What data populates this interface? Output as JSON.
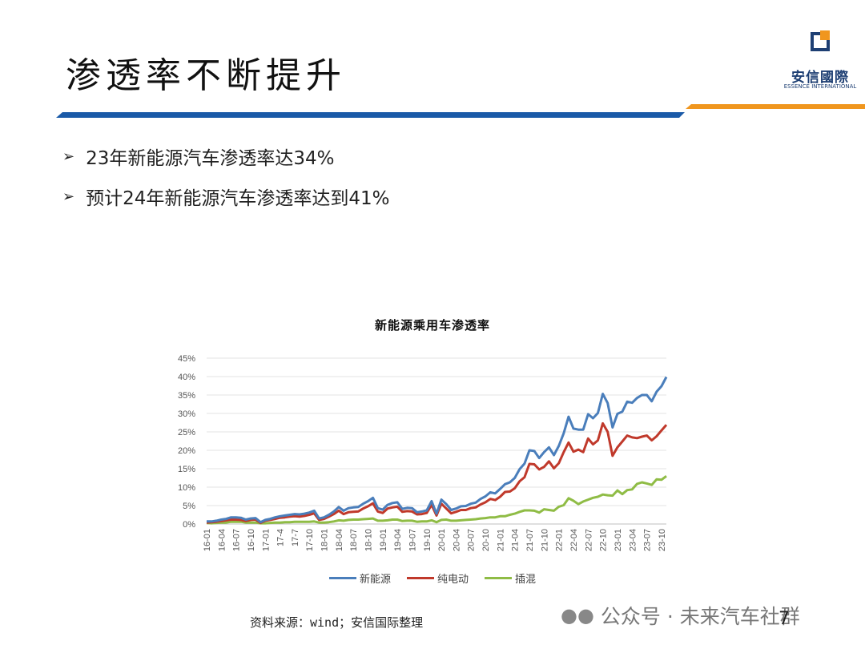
{
  "slide": {
    "title": "渗透率不断提升",
    "bullets": [
      "23年新能源汽车渗透率达34%",
      "预计24年新能源汽车渗透率达到41%"
    ],
    "source": "资料来源：wind；安信国际整理",
    "page_number": "7",
    "watermark": "公众号 · 未来汽车社群",
    "logo": {
      "name": "安信國際",
      "sub": "ESSENCE INTERNATIONAL",
      "icon": "essence-logo-icon"
    },
    "colors": {
      "band_blue": "#1a5aa8",
      "band_orange": "#f0961e",
      "logo_blue": "#1e3f73"
    }
  },
  "chart_data": {
    "type": "line",
    "title": "新能源乘用车渗透率",
    "ylim": [
      0,
      45
    ],
    "ytick_values": [
      0,
      5,
      10,
      15,
      20,
      25,
      30,
      35,
      40,
      45
    ],
    "ytick_labels": [
      "0%",
      "5%",
      "10%",
      "15%",
      "20%",
      "25%",
      "30%",
      "35%",
      "40%",
      "45%"
    ],
    "xtick_labels": [
      "16-01",
      "16-04",
      "16-07",
      "16-10",
      "17-01",
      "17-4",
      "17-7",
      "17-10",
      "18-01",
      "18-04",
      "18-07",
      "18-10",
      "19-01",
      "19-04",
      "19-07",
      "19-10",
      "20-01",
      "20-04",
      "20-07",
      "20-10",
      "21-01",
      "21-04",
      "21-07",
      "21-10",
      "22-01",
      "22-04",
      "22-07",
      "22-10",
      "23-01",
      "23-04",
      "23-07",
      "23-10"
    ],
    "grid": true,
    "legend_position": "bottom",
    "series": [
      {
        "name": "新能源",
        "color": "#4a7ebb",
        "values": [
          0.7,
          0.7,
          0.9,
          1.2,
          1.4,
          1.8,
          1.8,
          1.7,
          1.2,
          1.5,
          1.6,
          0.5,
          1.1,
          1.4,
          1.8,
          2.1,
          2.3,
          2.5,
          2.7,
          2.6,
          2.8,
          3.1,
          3.6,
          1.5,
          1.8,
          2.5,
          3.4,
          4.6,
          3.6,
          4.3,
          4.5,
          4.6,
          5.5,
          6.2,
          7.1,
          4.3,
          3.9,
          5.2,
          5.7,
          5.9,
          4.1,
          4.4,
          4.3,
          3.2,
          3.4,
          3.7,
          6.2,
          2.8,
          6.6,
          5.4,
          3.8,
          4.2,
          4.8,
          4.9,
          5.5,
          5.8,
          6.8,
          7.5,
          8.6,
          8.3,
          9.5,
          10.8,
          11.3,
          12.5,
          14.9,
          16.4,
          20.0,
          19.8,
          17.9,
          19.5,
          20.8,
          18.7,
          21.2,
          24.6,
          29.1,
          25.9,
          25.6,
          25.6,
          29.8,
          28.7,
          30.1,
          35.3,
          32.8,
          26.2,
          29.9,
          30.5,
          33.2,
          32.9,
          34.2,
          35.0,
          35.0,
          33.3,
          35.9,
          37.4,
          39.9
        ]
      },
      {
        "name": "纯电动",
        "color": "#c0392b",
        "values": [
          0.4,
          0.5,
          0.6,
          0.8,
          1.0,
          1.2,
          1.2,
          1.1,
          0.8,
          1.1,
          1.2,
          0.3,
          0.9,
          1.1,
          1.4,
          1.7,
          1.8,
          2.0,
          2.1,
          2.0,
          2.2,
          2.5,
          2.9,
          1.1,
          1.4,
          2.0,
          2.7,
          3.6,
          2.7,
          3.2,
          3.3,
          3.4,
          4.2,
          4.8,
          5.6,
          3.4,
          3.0,
          4.2,
          4.5,
          4.7,
          3.3,
          3.5,
          3.4,
          2.6,
          2.7,
          3.0,
          5.2,
          2.3,
          5.5,
          4.2,
          2.9,
          3.3,
          3.8,
          3.8,
          4.3,
          4.5,
          5.3,
          5.9,
          6.8,
          6.5,
          7.4,
          8.7,
          8.8,
          9.7,
          11.6,
          12.7,
          16.3,
          16.2,
          14.8,
          15.5,
          17.0,
          15.1,
          16.5,
          19.5,
          22.1,
          19.6,
          20.2,
          19.5,
          23.2,
          21.6,
          22.7,
          27.3,
          25.0,
          18.5,
          20.8,
          22.4,
          24.0,
          23.5,
          23.3,
          23.7,
          24.0,
          22.7,
          23.8,
          25.4,
          26.9
        ]
      },
      {
        "name": "插混",
        "color": "#8fbc45",
        "values": [
          0.3,
          0.2,
          0.3,
          0.4,
          0.4,
          0.6,
          0.6,
          0.6,
          0.4,
          0.4,
          0.4,
          0.2,
          0.2,
          0.3,
          0.4,
          0.4,
          0.5,
          0.5,
          0.6,
          0.6,
          0.6,
          0.6,
          0.7,
          0.4,
          0.4,
          0.5,
          0.7,
          1.0,
          0.9,
          1.1,
          1.2,
          1.2,
          1.3,
          1.4,
          1.5,
          0.9,
          0.9,
          1.0,
          1.2,
          1.2,
          0.8,
          0.9,
          0.9,
          0.6,
          0.7,
          0.7,
          1.0,
          0.5,
          1.1,
          1.2,
          0.9,
          0.9,
          1.0,
          1.1,
          1.2,
          1.3,
          1.5,
          1.6,
          1.8,
          1.8,
          2.1,
          2.1,
          2.5,
          2.8,
          3.3,
          3.7,
          3.7,
          3.6,
          3.1,
          4.0,
          3.8,
          3.6,
          4.7,
          5.1,
          7.0,
          6.3,
          5.4,
          6.1,
          6.6,
          7.1,
          7.4,
          8.0,
          7.8,
          7.7,
          9.1,
          8.1,
          9.2,
          9.4,
          10.9,
          11.3,
          11.0,
          10.6,
          12.1,
          12.0,
          13.0
        ]
      }
    ]
  }
}
